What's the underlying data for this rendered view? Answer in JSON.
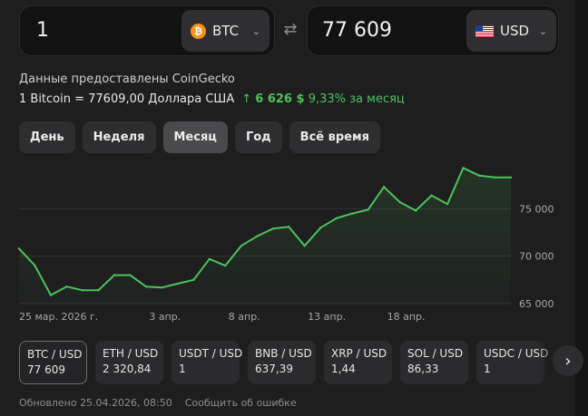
{
  "converter": {
    "from": {
      "value": "1",
      "currency": "BTC",
      "icon": "bitcoin-icon"
    },
    "to": {
      "value": "77 609",
      "currency": "USD",
      "icon": "us-flag-icon"
    },
    "swap_icon": "⇄"
  },
  "info": {
    "source": "Данные предоставлены CoinGecko",
    "rate": "1 Bitcoin = 77609,00 Доллара США",
    "change_arrow": "↑",
    "change_abs": "6 626 $",
    "change_pct": "9,33%",
    "change_period": "за месяц",
    "change_color": "#4cc35a"
  },
  "tabs": [
    {
      "label": "День",
      "active": false
    },
    {
      "label": "Неделя",
      "active": false
    },
    {
      "label": "Месяц",
      "active": true
    },
    {
      "label": "Год",
      "active": false
    },
    {
      "label": "Всё время",
      "active": false
    }
  ],
  "chart_data": {
    "type": "line",
    "series": [
      {
        "values": [
          {
            "x": "2026-03-25",
            "y": 70800
          },
          {
            "x": "2026-03-26",
            "y": 69000
          },
          {
            "x": "2026-03-27",
            "y": 65900
          },
          {
            "x": "2026-03-28",
            "y": 66800
          },
          {
            "x": "2026-03-29",
            "y": 66400
          },
          {
            "x": "2026-03-30",
            "y": 66400
          },
          {
            "x": "2026-03-31",
            "y": 68000
          },
          {
            "x": "2026-04-01",
            "y": 68000
          },
          {
            "x": "2026-04-02",
            "y": 66800
          },
          {
            "x": "2026-04-03",
            "y": 66700
          },
          {
            "x": "2026-04-04",
            "y": 67100
          },
          {
            "x": "2026-04-05",
            "y": 67500
          },
          {
            "x": "2026-04-06",
            "y": 69700
          },
          {
            "x": "2026-04-07",
            "y": 69000
          },
          {
            "x": "2026-04-08",
            "y": 71100
          },
          {
            "x": "2026-04-09",
            "y": 72100
          },
          {
            "x": "2026-04-10",
            "y": 72900
          },
          {
            "x": "2026-04-11",
            "y": 73100
          },
          {
            "x": "2026-04-12",
            "y": 71100
          },
          {
            "x": "2026-04-13",
            "y": 73000
          },
          {
            "x": "2026-04-14",
            "y": 74000
          },
          {
            "x": "2026-04-15",
            "y": 74500
          },
          {
            "x": "2026-04-16",
            "y": 74900
          },
          {
            "x": "2026-04-17",
            "y": 77300
          },
          {
            "x": "2026-04-18",
            "y": 75700
          },
          {
            "x": "2026-04-19",
            "y": 74800
          },
          {
            "x": "2026-04-20",
            "y": 76400
          },
          {
            "x": "2026-04-21",
            "y": 75500
          },
          {
            "x": "2026-04-22",
            "y": 79300
          },
          {
            "x": "2026-04-23",
            "y": 78500
          },
          {
            "x": "2026-04-24",
            "y": 78300
          },
          {
            "x": "2026-04-25",
            "y": 78300
          }
        ]
      }
    ],
    "x_tick_labels": [
      "25 мар. 2026 г.",
      "3 апр.",
      "8 апр.",
      "13 апр.",
      "18 апр."
    ],
    "x_tick_dates": [
      "2026-03-25",
      "2026-04-03",
      "2026-04-08",
      "2026-04-13",
      "2026-04-18"
    ],
    "y_ticks": [
      65000,
      70000,
      75000
    ],
    "y_tick_labels": [
      "65 000",
      "70 000",
      "75 000"
    ],
    "ylim": [
      65000,
      80000
    ],
    "grid": true,
    "line_color": "#4cc35a"
  },
  "tiles": [
    {
      "pair": "BTC / USD",
      "price": "77 609",
      "active": true
    },
    {
      "pair": "ETH / USD",
      "price": "2 320,84",
      "active": false
    },
    {
      "pair": "USDT / USD",
      "price": "1",
      "active": false
    },
    {
      "pair": "BNB / USD",
      "price": "637,39",
      "active": false
    },
    {
      "pair": "XRP / USD",
      "price": "1,44",
      "active": false
    },
    {
      "pair": "SOL / USD",
      "price": "86,33",
      "active": false
    },
    {
      "pair": "USDC / USD",
      "price": "1",
      "active": false
    }
  ],
  "next_icon": "›",
  "footer": {
    "updated": "Обновлено 25.04.2026, 08:50",
    "report": "Сообщить об ошибке"
  }
}
